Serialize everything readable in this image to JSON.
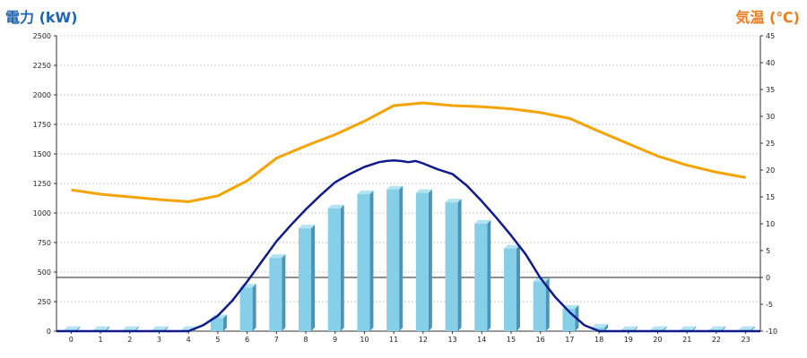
{
  "colors": {
    "left_title": "#1f63b4",
    "right_title": "#f07b1a",
    "bar_front": "#86cfe8",
    "bar_side": "#4c94b6",
    "bar_top": "#b2e4f4",
    "power_line": "#0f1a8c",
    "temp_line": "#f5a300"
  },
  "chart_data": {
    "type": "bar",
    "title_left": "電力 (kW)",
    "title_right": "気温 (℃)",
    "categories": [
      "0",
      "1",
      "2",
      "3",
      "4",
      "5",
      "6",
      "7",
      "8",
      "9",
      "10",
      "11",
      "12",
      "13",
      "14",
      "15",
      "16",
      "17",
      "18",
      "19",
      "20",
      "21",
      "22",
      "23"
    ],
    "y_left": {
      "range": [
        0,
        2500
      ],
      "ticks": [
        "0",
        "250",
        "500",
        "750",
        "1000",
        "1250",
        "1500",
        "1750",
        "2000",
        "2250",
        "2500"
      ]
    },
    "y_right": {
      "range": [
        -10,
        45
      ],
      "ticks": [
        "-10",
        "-5",
        "0",
        "5",
        "10",
        "15",
        "20",
        "25",
        "30",
        "35",
        "40",
        "45"
      ]
    },
    "grid": true,
    "series": [
      {
        "kind": "bar",
        "axis": "left",
        "values": [
          10,
          10,
          10,
          10,
          10,
          110,
          370,
          620,
          870,
          1040,
          1160,
          1200,
          1170,
          1090,
          910,
          700,
          420,
          190,
          30,
          10,
          10,
          10,
          10,
          10
        ]
      },
      {
        "kind": "line",
        "axis": "left",
        "x": [
          4,
          4.5,
          5,
          5.5,
          6,
          6.5,
          7,
          7.5,
          8,
          8.5,
          9,
          9.5,
          10,
          10.5,
          10.75,
          11,
          11.25,
          11.5,
          11.75,
          12,
          12.5,
          13,
          13.5,
          14,
          14.5,
          15,
          15.5,
          16,
          16.5,
          17,
          17.5,
          18,
          19,
          20,
          21,
          22,
          23
        ],
        "values": [
          0,
          50,
          130,
          260,
          420,
          590,
          760,
          900,
          1030,
          1150,
          1260,
          1330,
          1390,
          1430,
          1440,
          1445,
          1440,
          1430,
          1440,
          1420,
          1370,
          1330,
          1230,
          1100,
          960,
          810,
          650,
          450,
          290,
          160,
          50,
          0,
          0,
          0,
          0,
          0,
          0
        ]
      },
      {
        "kind": "line",
        "axis": "right",
        "values": [
          16.3,
          15.5,
          15.0,
          14.5,
          14.1,
          15.2,
          18.0,
          22.2,
          24.5,
          26.6,
          29.1,
          32.0,
          32.5,
          32.0,
          31.8,
          31.4,
          30.7,
          29.6,
          27.2,
          24.9,
          22.6,
          20.9,
          19.6,
          18.6
        ]
      }
    ]
  }
}
